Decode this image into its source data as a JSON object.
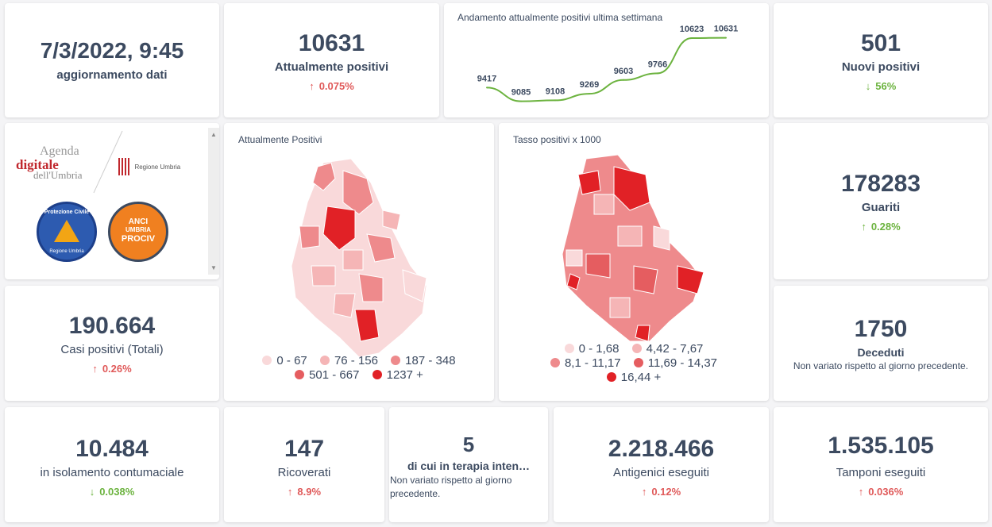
{
  "update": {
    "datetime": "7/3/2022, 9:45",
    "label": "aggiornamento dati"
  },
  "attualmente_positivi": {
    "value": "10631",
    "label": "Attualmente positivi",
    "delta": "0.075%",
    "direction": "up"
  },
  "weekly_chart": {
    "title": "Andamento attualmente positivi ultima settimana",
    "line_color": "#6cb33f"
  },
  "chart_data": [
    {
      "type": "line",
      "title": "Andamento attualmente positivi ultima settimana",
      "x": [
        1,
        2,
        3,
        4,
        5,
        6,
        7,
        8
      ],
      "values": [
        9417,
        9085,
        9108,
        9269,
        9603,
        9766,
        10623,
        10631
      ],
      "labels": [
        "9417",
        "9085",
        "9108",
        "9269",
        "9603",
        "9766",
        "10623",
        "10631"
      ]
    }
  ],
  "nuovi_positivi": {
    "value": "501",
    "label": "Nuovi positivi",
    "delta": "56%",
    "direction": "down"
  },
  "logos": {
    "agenda_line1": "Agenda",
    "agenda_line2": "digitale",
    "agenda_line3": "dell'Umbria",
    "regione": "Regione Umbria",
    "protezione": "Protezione Civile",
    "protezione_sub": "Regione Umbria",
    "anci_line1": "ANCI",
    "anci_line2": "UMBRIA",
    "anci_line3": "PROCIV"
  },
  "map_positivi": {
    "title": "Attualmente Positivi",
    "legend": [
      {
        "label": "0 - 67",
        "color": "#f9d9da"
      },
      {
        "label": "76 - 156",
        "color": "#f5b5b6"
      },
      {
        "label": "187 - 348",
        "color": "#ee8a8c"
      },
      {
        "label": "501 - 667",
        "color": "#e55d60"
      },
      {
        "label": "1237 +",
        "color": "#e12126"
      }
    ]
  },
  "map_tasso": {
    "title": "Tasso positivi x 1000",
    "legend": [
      {
        "label": "0 - 1,68",
        "color": "#f9d9da"
      },
      {
        "label": "4,42 - 7,67",
        "color": "#f5b5b6"
      },
      {
        "label": "8,1 - 11,17",
        "color": "#ee8a8c"
      },
      {
        "label": "11,69 - 14,37",
        "color": "#e55d60"
      },
      {
        "label": "16,44 +",
        "color": "#e12126"
      }
    ]
  },
  "guariti": {
    "value": "178283",
    "label": "Guariti",
    "delta": "0.28%",
    "direction": "up-good"
  },
  "casi_totali": {
    "value": "190.664",
    "label": "Casi positivi (Totali)",
    "delta": "0.26%",
    "direction": "up"
  },
  "deceduti": {
    "value": "1750",
    "label": "Deceduti",
    "note": "Non variato rispetto al giorno precedente."
  },
  "isolamento": {
    "value": "10.484",
    "label": "in isolamento contumaciale",
    "delta": "0.038%",
    "direction": "down"
  },
  "ricoverati": {
    "value": "147",
    "label": "Ricoverati",
    "delta": "8.9%",
    "direction": "up"
  },
  "terapia": {
    "value": "5",
    "label": "di cui in terapia inten…",
    "note": "Non variato rispetto al giorno precedente."
  },
  "antigenici": {
    "value": "2.218.466",
    "label": "Antigenici eseguiti",
    "delta": "0.12%",
    "direction": "up"
  },
  "tamponi": {
    "value": "1.535.105",
    "label": "Tamponi eseguiti",
    "delta": "0.036%",
    "direction": "up"
  }
}
